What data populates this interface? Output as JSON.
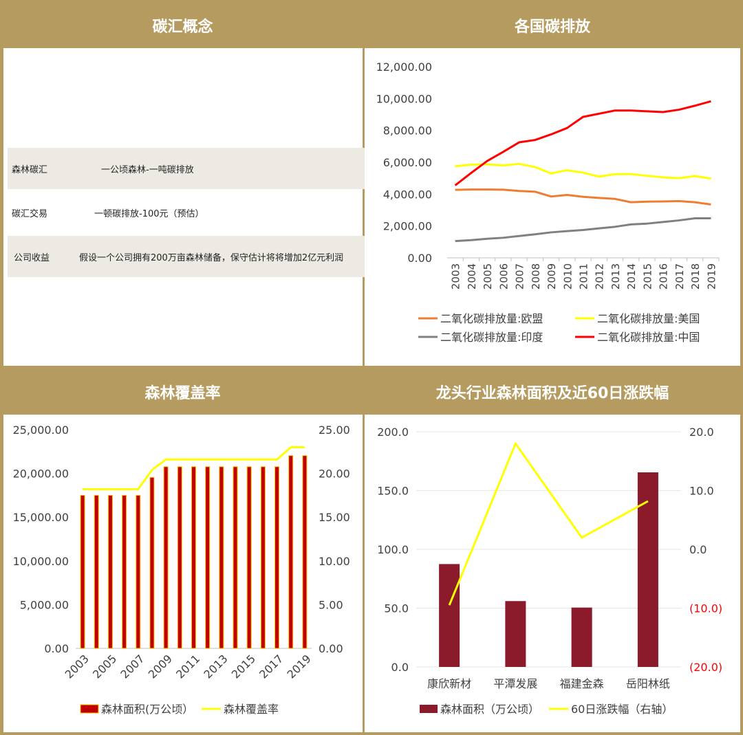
{
  "headers": {
    "p1": "碳汇概念",
    "p2": "各国碳排放",
    "p3": "森林覆盖率",
    "p4": "龙头行业森林面积及近60日涨跌幅"
  },
  "concept": {
    "rows": [
      {
        "key": "森林碳汇",
        "value": "一公顷森林-一吨碳排放"
      },
      {
        "key": "碳汇交易",
        "value": "一顿碳排放-100元（预估）"
      },
      {
        "key": "公司收益",
        "value": "假设一个公司拥有200万亩森林储备，保守估计将将增加2亿元利润"
      }
    ]
  },
  "colors": {
    "bg": "#b59b5f",
    "eu": "#ed7d31",
    "us": "#ffff00",
    "india": "#808080",
    "china": "#ff0000",
    "forest_bar": "#c00000",
    "forest_bar_border": "#ffc000",
    "leader_bar": "#8b1a2b",
    "neg": "#ff0000"
  },
  "chart_data": [
    {
      "type": "line",
      "x": [
        "2003",
        "2004",
        "2005",
        "2006",
        "2007",
        "2008",
        "2009",
        "2010",
        "2011",
        "2012",
        "2013",
        "2014",
        "2015",
        "2016",
        "2017",
        "2018",
        "2019"
      ],
      "ylim": [
        0,
        12000
      ],
      "yticks": [
        "12,000.00",
        "10,000.00",
        "8,000.00",
        "6,000.00",
        "4,000.00",
        "2,000.00",
        "0.00"
      ],
      "series": [
        {
          "name": "二氧化碳排放量:欧盟",
          "values": [
            4270,
            4290,
            4290,
            4280,
            4200,
            4150,
            3850,
            3950,
            3830,
            3760,
            3700,
            3490,
            3530,
            3540,
            3560,
            3490,
            3350
          ]
        },
        {
          "name": "二氧化碳排放量:美国",
          "values": [
            5750,
            5850,
            5870,
            5800,
            5900,
            5700,
            5300,
            5500,
            5350,
            5100,
            5250,
            5260,
            5150,
            5050,
            5000,
            5130,
            4980
          ]
        },
        {
          "name": "二氧化碳排放量:印度",
          "values": [
            1050,
            1110,
            1200,
            1260,
            1370,
            1480,
            1600,
            1680,
            1750,
            1850,
            1950,
            2100,
            2150,
            2250,
            2350,
            2480,
            2480
          ]
        },
        {
          "name": "二氧化碳排放量:中国",
          "values": [
            4550,
            5330,
            6080,
            6650,
            7250,
            7400,
            7750,
            8150,
            8850,
            9050,
            9250,
            9250,
            9200,
            9150,
            9300,
            9550,
            9830
          ]
        }
      ]
    },
    {
      "type": "bar",
      "x": [
        "2003",
        "2004",
        "2005",
        "2006",
        "2007",
        "2008",
        "2009",
        "2010",
        "2011",
        "2012",
        "2013",
        "2014",
        "2015",
        "2016",
        "2017",
        "2018",
        "2019"
      ],
      "xtick_labels": [
        "2003",
        "2005",
        "2007",
        "2009",
        "2011",
        "2013",
        "2015",
        "2017",
        "2019"
      ],
      "ylim": [
        0,
        25000
      ],
      "yticks": [
        "25,000.00",
        "20,000.00",
        "15,000.00",
        "10,000.00",
        "5,000.00",
        "0.00"
      ],
      "y2lim": [
        0,
        25
      ],
      "y2ticks": [
        "25.00",
        "20.00",
        "15.00",
        "10.00",
        "5.00",
        "0.00"
      ],
      "series": [
        {
          "name": "森林面积(万公顷）",
          "values": [
            17500,
            17500,
            17500,
            17500,
            17500,
            19550,
            20770,
            20770,
            20770,
            20770,
            20770,
            20770,
            20770,
            20770,
            20770,
            22040,
            22040
          ]
        },
        {
          "name": "森林覆盖率",
          "axis": "right",
          "values": [
            18.2,
            18.2,
            18.2,
            18.2,
            18.2,
            20.4,
            21.6,
            21.6,
            21.6,
            21.6,
            21.6,
            21.6,
            21.6,
            21.6,
            21.6,
            23.0,
            23.0
          ]
        }
      ]
    },
    {
      "type": "bar",
      "categories": [
        "康欣新材",
        "平潭发展",
        "福建金森",
        "岳阳林纸"
      ],
      "ylim": [
        0,
        200
      ],
      "yticks": [
        "200.0",
        "150.0",
        "100.0",
        "50.0",
        "0.0"
      ],
      "y2lim": [
        -20,
        20
      ],
      "y2ticks": [
        "20.0",
        "10.0",
        "0.0",
        "(10.0)",
        "(20.0)"
      ],
      "series": [
        {
          "name": "森林面积（万公顷）",
          "values": [
            87.5,
            56,
            50.5,
            165.5
          ]
        },
        {
          "name": "60日涨跌幅（右轴）",
          "axis": "right",
          "values": [
            -9.5,
            18,
            2,
            8.2
          ]
        }
      ]
    }
  ]
}
